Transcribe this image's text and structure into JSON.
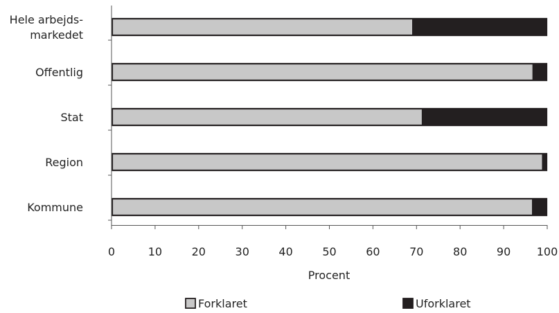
{
  "chart_data": {
    "type": "bar",
    "orientation": "horizontal",
    "stacked": true,
    "categories": [
      [
        "Hele arbejds-",
        "markedet"
      ],
      [
        "Offentlig"
      ],
      [
        "Stat"
      ],
      [
        "Region"
      ],
      [
        "Kommune"
      ]
    ],
    "series": [
      {
        "name": "Forklaret",
        "values": [
          69,
          96.6,
          71.2,
          98.8,
          96.5
        ],
        "color": "#c8c8c8"
      },
      {
        "name": "Uforklaret",
        "values": [
          31,
          3.4,
          28.8,
          1.2,
          3.5
        ],
        "color": "#231f20"
      }
    ],
    "xlabel": "Procent",
    "xlim": [
      0,
      100
    ],
    "xticks": [
      0,
      10,
      20,
      30,
      40,
      50,
      60,
      70,
      80,
      90,
      100
    ],
    "grid": false,
    "legend_position": "bottom"
  }
}
